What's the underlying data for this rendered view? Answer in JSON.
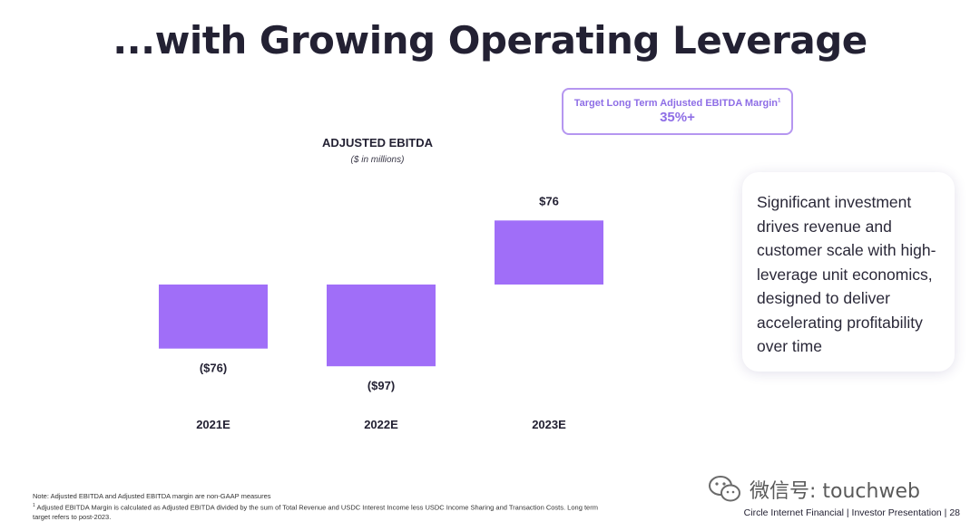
{
  "slide": {
    "title": "...with Growing Operating Leverage",
    "footer": "Circle Internet Financial | Investor Presentation | 28"
  },
  "target": {
    "label": "Target Long Term Adjusted EBITDA Margin",
    "footnote_mark": "1",
    "value": "35%+"
  },
  "callout": {
    "text": "Significant investment drives revenue and customer scale with high-leverage unit economics, designed to deliver accelerating profitability over time"
  },
  "notes": {
    "line1": "Note: Adjusted EBITDA and Adjusted EBITDA margin are non-GAAP measures",
    "line2_mark": "1",
    "line2": "Adjusted EBITDA Margin is calculated as Adjusted EBITDA divided by the sum of Total Revenue and USDC Interest Income less USDC Income Sharing and Transaction Costs. Long term target refers to post-2023."
  },
  "watermark": {
    "text": "微信号: touchweb",
    "icon": "wechat-icon"
  },
  "chart_data": {
    "type": "bar",
    "title": "ADJUSTED EBITDA",
    "subtitle": "($ in millions)",
    "categories": [
      "2021E",
      "2022E",
      "2023E"
    ],
    "values": [
      -76,
      -97,
      76
    ],
    "data_labels": [
      "($76)",
      "($97)",
      "$76"
    ],
    "bar_color": "#a06ef8",
    "ylim": [
      -97,
      76
    ],
    "grid": false,
    "legend": "none"
  }
}
